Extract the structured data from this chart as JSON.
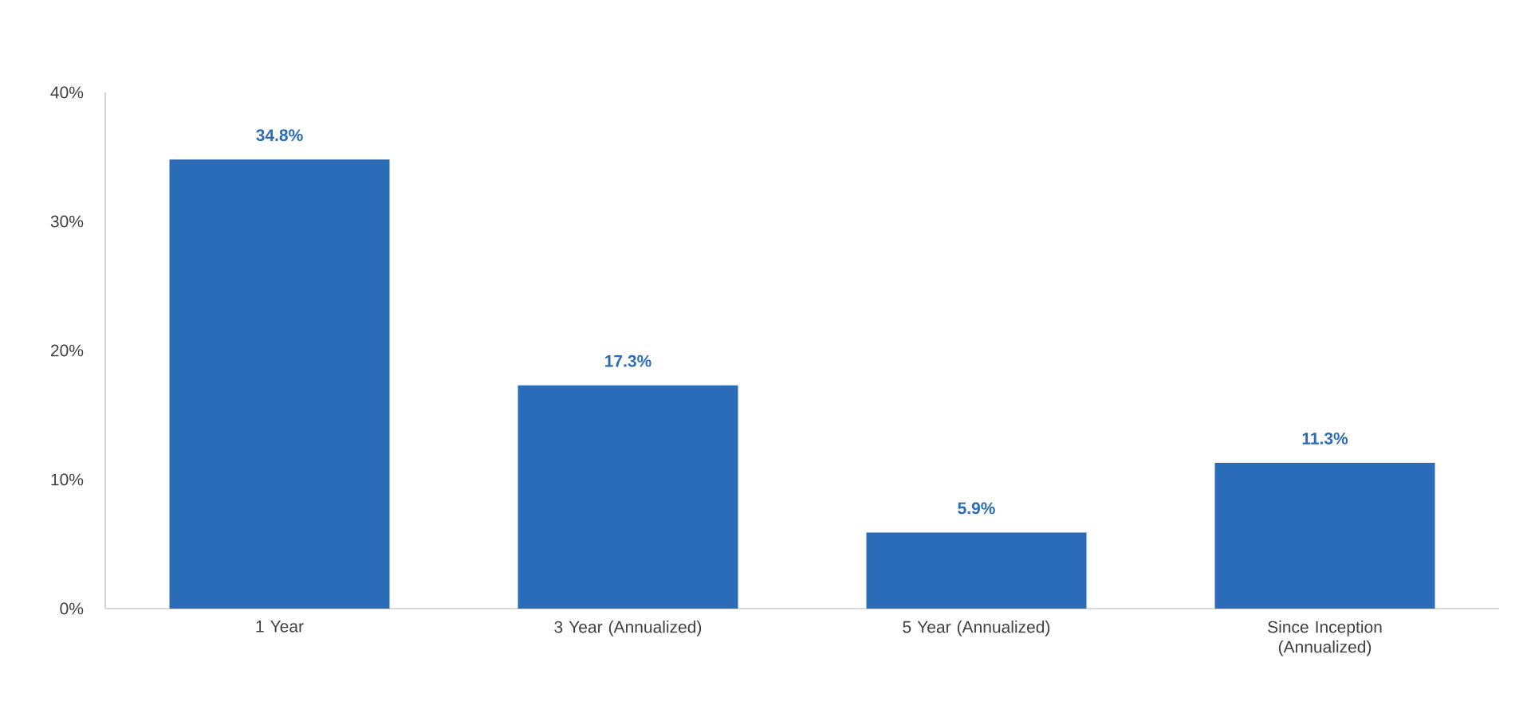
{
  "chart_data": {
    "type": "bar",
    "categories": [
      "1 Year",
      "3 Year (Annualized)",
      "5 Year (Annualized)",
      "Since Inception (Annualized)"
    ],
    "values": [
      34.8,
      17.3,
      5.9,
      11.3
    ],
    "value_labels": [
      "34.8%",
      "17.3%",
      "5.9%",
      "11.3%"
    ],
    "color": "#2b6cb8",
    "ylim": [
      0,
      40
    ],
    "yticks": [
      {
        "value": 0,
        "label": "0%"
      },
      {
        "value": 10,
        "label": "10%"
      },
      {
        "value": 20,
        "label": "20%"
      },
      {
        "value": 30,
        "label": "30%"
      },
      {
        "value": 40,
        "label": "40%"
      }
    ]
  }
}
